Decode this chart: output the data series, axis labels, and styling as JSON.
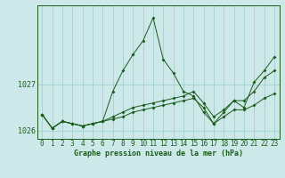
{
  "title": "Graphe pression niveau de la mer (hPa)",
  "background_color": "#cce8e8",
  "grid_color": "#99cccc",
  "line_color": "#1a5c1a",
  "hours": [
    0,
    1,
    2,
    3,
    4,
    5,
    6,
    7,
    8,
    9,
    10,
    11,
    12,
    13,
    14,
    15,
    16,
    17,
    18,
    19,
    20,
    21,
    22,
    23
  ],
  "y_peak": [
    1026.35,
    1026.05,
    1026.2,
    1026.15,
    1026.1,
    1026.15,
    1026.2,
    1026.85,
    1027.3,
    1027.65,
    1027.95,
    1028.45,
    1027.55,
    1027.25,
    1026.85,
    1026.75,
    1026.4,
    1026.15,
    1026.4,
    1026.65,
    1026.5,
    1027.05,
    1027.3,
    1027.6
  ],
  "y_mid": [
    1026.35,
    1026.05,
    1026.2,
    1026.15,
    1026.1,
    1026.15,
    1026.2,
    1026.3,
    1026.4,
    1026.5,
    1026.55,
    1026.6,
    1026.65,
    1026.7,
    1026.75,
    1026.85,
    1026.6,
    1026.3,
    1026.45,
    1026.65,
    1026.65,
    1026.85,
    1027.15,
    1027.3
  ],
  "y_base": [
    1026.35,
    1026.05,
    1026.2,
    1026.15,
    1026.1,
    1026.15,
    1026.2,
    1026.25,
    1026.3,
    1026.4,
    1026.45,
    1026.5,
    1026.55,
    1026.6,
    1026.65,
    1026.7,
    1026.5,
    1026.15,
    1026.3,
    1026.45,
    1026.45,
    1026.55,
    1026.7,
    1026.8
  ],
  "ylim": [
    1025.82,
    1028.72
  ],
  "yticks": [
    1026,
    1027
  ],
  "xlim": [
    -0.5,
    23.5
  ],
  "tick_fontsize": 5.5,
  "label_fontsize": 6.0
}
